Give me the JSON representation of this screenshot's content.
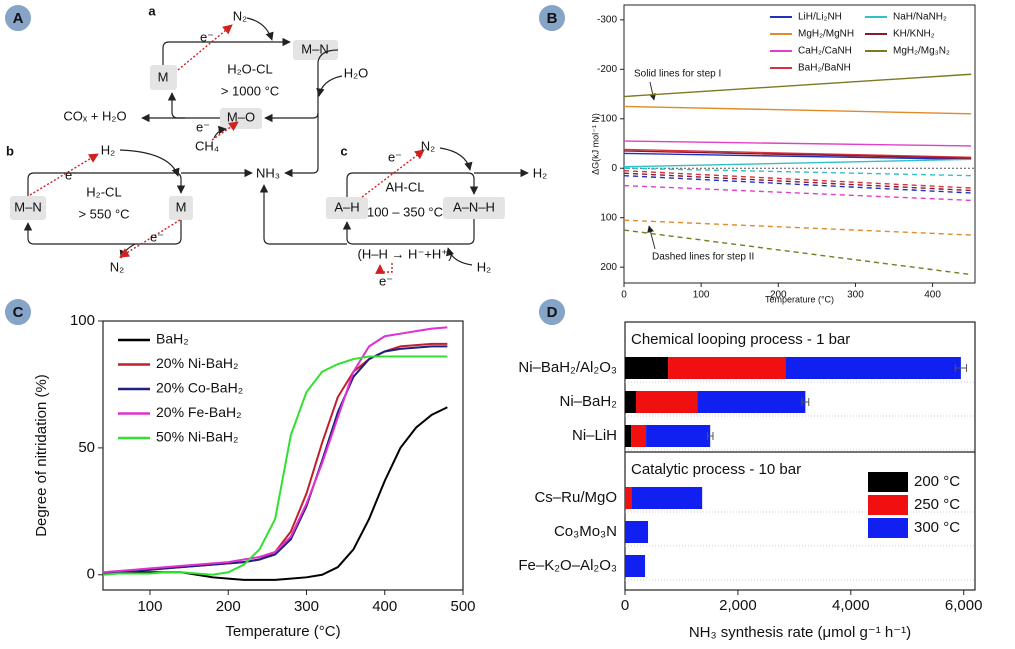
{
  "panel_labels": [
    "A",
    "B",
    "C",
    "D"
  ],
  "diagram": {
    "labels": [
      "a",
      "N₂",
      "e⁻",
      "M–N",
      "M",
      "H₂O-CL",
      "> 1000 °C",
      "H₂O",
      "M–O",
      "COₓ + H₂O",
      "e⁻",
      "CH₄",
      "b",
      "H₂",
      "e⁻",
      "NH₃",
      "c",
      "e⁻",
      "N₂",
      "H₂",
      "M–N",
      "H₂-CL",
      "> 550 °C",
      "M",
      "e⁻",
      "N₂",
      "A–H",
      "AH-CL",
      "100 – 350 °C",
      "A–N–H",
      "(H–H → H⁻+H⁺)",
      "H₂",
      "e⁻"
    ]
  },
  "chart_data": [
    {
      "type": "line",
      "xlabel": "Temperature (°C)",
      "ylabel": "ΔG(kJ mol⁻¹ N)",
      "x": [
        0,
        450
      ],
      "xlim": [
        0,
        455
      ],
      "xticks": [
        0,
        100,
        200,
        300,
        400
      ],
      "ylim": [
        -330,
        232
      ],
      "yticks": [
        -300,
        -200,
        -100,
        0,
        100,
        200
      ],
      "y_inverted": true,
      "zero_line": true,
      "legend": "top-right",
      "annotations": [
        "Solid lines for step I",
        "Dashed lines for step II"
      ],
      "series": [
        {
          "name": "LiH/Li₂NH",
          "color": "#2030c0",
          "values": [
            -30,
            -18
          ],
          "values_step_II": [
            15,
            50
          ]
        },
        {
          "name": "MgH₂/MgNH",
          "color": "#e08a2a",
          "values": [
            -125,
            -110
          ],
          "values_step_II": [
            105,
            135
          ]
        },
        {
          "name": "CaH₂/CaNH",
          "color": "#e040c8",
          "values": [
            -55,
            -45
          ],
          "values_step_II": [
            35,
            65
          ]
        },
        {
          "name": "BaH₂/BaNH",
          "color": "#d83040",
          "values": [
            -38,
            -22
          ],
          "values_step_II": [
            5,
            40
          ]
        },
        {
          "name": "NaH/NaNH₂",
          "color": "#30c0c8",
          "values": [
            -3,
            -18
          ],
          "values_step_II": [
            0,
            15
          ]
        },
        {
          "name": "KH/KNH₂",
          "color": "#8a1a2a",
          "values": [
            -35,
            -20
          ],
          "values_step_II": [
            10,
            45
          ]
        },
        {
          "name": "MgH₂/Mg₃N₂",
          "color": "#7a7a20",
          "values": [
            -145,
            -190
          ],
          "values_step_II": [
            125,
            215
          ]
        }
      ]
    },
    {
      "type": "line",
      "xlabel": "Temperature (°C)",
      "ylabel": "Degree of nitridation (%)",
      "x": [
        40,
        60,
        80,
        100,
        120,
        140,
        160,
        180,
        200,
        220,
        240,
        260,
        280,
        300,
        320,
        340,
        360,
        380,
        400,
        420,
        440,
        460,
        480
      ],
      "xlim": [
        40,
        500
      ],
      "xticks": [
        100,
        200,
        300,
        400,
        500
      ],
      "ylim": [
        -6,
        100
      ],
      "yticks": [
        0,
        50,
        100
      ],
      "legend": "top-left",
      "series": [
        {
          "name": "BaH₂",
          "color": "#000000",
          "values": [
            0.5,
            1,
            1,
            1,
            1,
            1,
            0,
            -1,
            -1.5,
            -2,
            -2,
            -2,
            -1.5,
            -1,
            0,
            3,
            10,
            22,
            37,
            50,
            58,
            63,
            66
          ]
        },
        {
          "name": "20% Ni-BaH₂",
          "color": "#c0202a",
          "values": [
            0.5,
            1,
            1.5,
            2,
            2.5,
            3,
            3.5,
            4,
            4.5,
            5,
            6,
            9,
            17,
            32,
            52,
            70,
            80,
            85,
            88,
            90,
            90.5,
            91,
            91
          ]
        },
        {
          "name": "20% Co-BaH₂",
          "color": "#202080",
          "values": [
            0.5,
            1,
            1.5,
            2,
            2.5,
            3,
            3.5,
            4,
            4.5,
            5,
            6,
            8,
            14,
            27,
            45,
            64,
            78,
            85,
            88,
            89,
            89.5,
            90,
            90
          ]
        },
        {
          "name": "20% Fe-BaH₂",
          "color": "#e030d0",
          "values": [
            1,
            1.5,
            2,
            2.5,
            3,
            3.5,
            4,
            4.5,
            5,
            6,
            7,
            9,
            15,
            28,
            44,
            62,
            80,
            90,
            94,
            95,
            96,
            97,
            97.5
          ]
        },
        {
          "name": "50% Ni-BaH₂",
          "color": "#30e030",
          "values": [
            0,
            0.5,
            0.5,
            0.5,
            1,
            1,
            0.5,
            0,
            1,
            4,
            10,
            22,
            55,
            72,
            80,
            83,
            85,
            86,
            86,
            86,
            86,
            86,
            86
          ]
        }
      ]
    },
    {
      "type": "bar",
      "orientation": "horizontal",
      "stacked": true,
      "xlabel": "NH₃ synthesis rate (μmol g⁻¹ h⁻¹)",
      "xlim": [
        0,
        6200
      ],
      "xticks": [
        0,
        {
          "value": 2000,
          "label": "2,000"
        },
        {
          "value": 4000,
          "label": "4,000"
        },
        {
          "value": 6000,
          "label": "6,000"
        }
      ],
      "groups": [
        {
          "title": "Chemical looping process - 1 bar",
          "categories": [
            "Ni–BaH₂/Al₂O₃",
            "Ni–BaH₂",
            "Ni–LiH"
          ]
        },
        {
          "title": "Catalytic process - 10 bar",
          "categories": [
            "Cs–Ru/MgO",
            "Co₃Mo₃N",
            "Fe–K₂O–Al₂O₃"
          ]
        }
      ],
      "legend": "bottom-right",
      "series": [
        {
          "name": "200 °C",
          "color": "#000000",
          "values": [
            763,
            195,
            107,
            0,
            0,
            0
          ]
        },
        {
          "name": "250 °C",
          "color": "#f01010",
          "values": [
            2077,
            1083,
            266,
            124,
            0,
            0
          ]
        },
        {
          "name": "300 °C",
          "color": "#1020f0",
          "values": [
            3110,
            1917,
            1136,
            1243,
            408,
            355
          ]
        }
      ],
      "errors": [
        100,
        60,
        50,
        null,
        null,
        null
      ]
    }
  ]
}
